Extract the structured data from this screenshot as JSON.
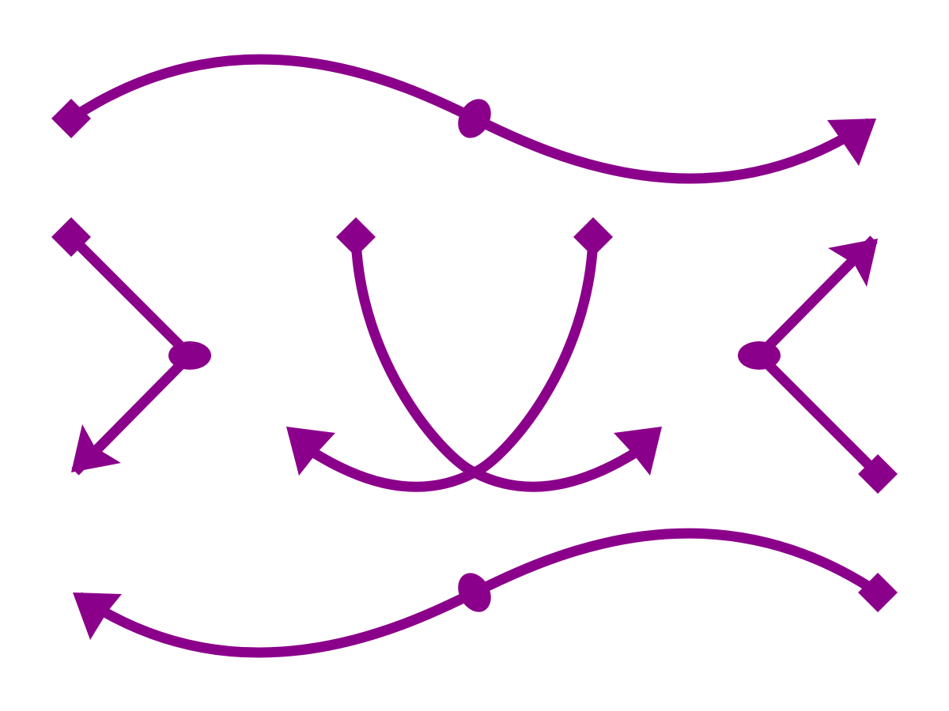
{
  "diagram": {
    "background": "#ffffff",
    "stroke_color": "#8b008b",
    "shapes": [
      "diamond-marker",
      "ellipse-marker",
      "arrowhead-marker"
    ],
    "connectors": [
      {
        "name": "top-wave-connector",
        "start": "diamond",
        "middle": "ellipse",
        "end": "arrow"
      },
      {
        "name": "left-chevron-connector",
        "start": "diamond",
        "middle": "ellipse",
        "end": "arrow"
      },
      {
        "name": "left-arc-connector",
        "start": "diamond",
        "middle": "none",
        "end": "arrow"
      },
      {
        "name": "right-arc-connector",
        "start": "diamond",
        "middle": "none",
        "end": "arrow"
      },
      {
        "name": "right-chevron-connector",
        "start": "diamond",
        "middle": "ellipse",
        "end": "arrow"
      },
      {
        "name": "bottom-wave-connector",
        "start": "diamond",
        "middle": "ellipse",
        "end": "arrow"
      }
    ]
  }
}
